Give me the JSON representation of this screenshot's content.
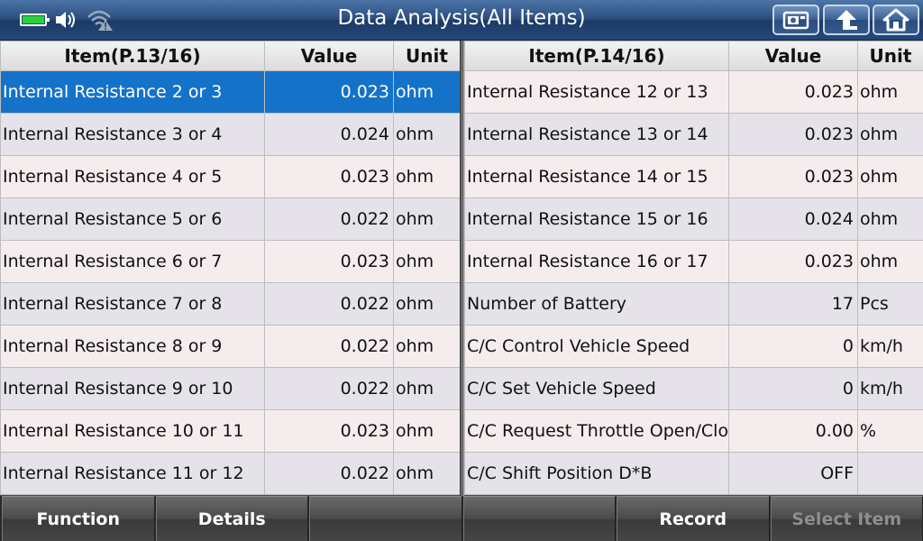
{
  "header": {
    "title": "Data Analysis(All Items)",
    "accent_color": "#2b4d7e"
  },
  "status_icons": [
    "battery-charging-icon",
    "speaker-icon",
    "wifi-warning-icon"
  ],
  "top_buttons": [
    {
      "name": "screenshot-button",
      "icon": "camera-icon"
    },
    {
      "name": "back-button",
      "icon": "arrow-up-icon"
    },
    {
      "name": "home-button",
      "icon": "home-icon"
    }
  ],
  "left_table": {
    "headers": {
      "item": "Item(P.13/16)",
      "value": "Value",
      "unit": "Unit"
    },
    "rows": [
      {
        "item": "Internal Resistance 2 or 3",
        "value": "0.023",
        "unit": "ohm",
        "selected": true
      },
      {
        "item": "Internal Resistance 3 or 4",
        "value": "0.024",
        "unit": "ohm"
      },
      {
        "item": "Internal Resistance 4 or 5",
        "value": "0.023",
        "unit": "ohm"
      },
      {
        "item": "Internal Resistance 5 or 6",
        "value": "0.022",
        "unit": "ohm"
      },
      {
        "item": "Internal Resistance 6 or 7",
        "value": "0.023",
        "unit": "ohm"
      },
      {
        "item": "Internal Resistance 7 or 8",
        "value": "0.022",
        "unit": "ohm"
      },
      {
        "item": "Internal Resistance 8 or 9",
        "value": "0.022",
        "unit": "ohm"
      },
      {
        "item": "Internal Resistance 9 or 10",
        "value": "0.022",
        "unit": "ohm"
      },
      {
        "item": "Internal Resistance 10 or 11",
        "value": "0.023",
        "unit": "ohm"
      },
      {
        "item": "Internal Resistance 11 or 12",
        "value": "0.022",
        "unit": "ohm"
      }
    ]
  },
  "right_table": {
    "headers": {
      "item": "Item(P.14/16)",
      "value": "Value",
      "unit": "Unit"
    },
    "rows": [
      {
        "item": "Internal Resistance 12 or 13",
        "value": "0.023",
        "unit": "ohm"
      },
      {
        "item": "Internal Resistance 13 or 14",
        "value": "0.023",
        "unit": "ohm"
      },
      {
        "item": "Internal Resistance 14 or 15",
        "value": "0.023",
        "unit": "ohm"
      },
      {
        "item": "Internal Resistance 15 or 16",
        "value": "0.024",
        "unit": "ohm"
      },
      {
        "item": "Internal Resistance 16 or 17",
        "value": "0.023",
        "unit": "ohm"
      },
      {
        "item": "Number of Battery",
        "value": "17",
        "unit": "Pcs"
      },
      {
        "item": "C/C Control Vehicle Speed",
        "value": "0",
        "unit": "km/h"
      },
      {
        "item": "C/C Set Vehicle Speed",
        "value": "0",
        "unit": "km/h"
      },
      {
        "item": "C/C Request Throttle Open/Close Angle",
        "value": "0.00",
        "unit": "%",
        "wrap": true
      },
      {
        "item": "C/C Shift Position D*B",
        "value": "OFF",
        "unit": ""
      }
    ]
  },
  "bottom_buttons": [
    {
      "label": "Function",
      "enabled": true
    },
    {
      "label": "Details",
      "enabled": true
    },
    {
      "label": "",
      "enabled": true
    },
    {
      "label": "",
      "enabled": true
    },
    {
      "label": "Record",
      "enabled": true
    },
    {
      "label": "Select Item",
      "enabled": false
    }
  ],
  "colors": {
    "selected_row": "#1473c8",
    "row_odd": "#f5eded",
    "row_even": "#e5e3e9"
  }
}
